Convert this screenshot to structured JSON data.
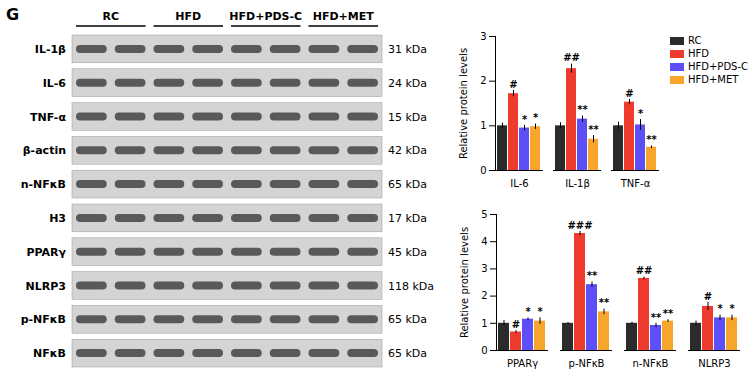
{
  "panel_label": "G",
  "blot": {
    "groups": [
      "RC",
      "HFD",
      "HFD+PDS-C",
      "HFD+MET"
    ],
    "rows": [
      {
        "label": "IL-1β",
        "size": "31 kDa"
      },
      {
        "label": "IL-6",
        "size": "24 kDa"
      },
      {
        "label": "TNF-α",
        "size": "15 kDa"
      },
      {
        "label": "β-actin",
        "size": "42 kDa"
      },
      {
        "label": "n-NFκB",
        "size": "65 kDa"
      },
      {
        "label": "H3",
        "size": "17 kDa"
      },
      {
        "label": "PPARγ",
        "size": "45 kDa"
      },
      {
        "label": "NLRP3",
        "size": "118 kDa"
      },
      {
        "label": "p-NFκB",
        "size": "65 kDa"
      },
      {
        "label": "NFκB",
        "size": "65 kDa"
      }
    ]
  },
  "chart_data": [
    {
      "type": "bar",
      "y_label": "Relative protein levels",
      "categories": [
        "IL-6",
        "IL-1β",
        "TNF-α"
      ],
      "series": [
        {
          "name": "RC",
          "color": "#2b2b2b",
          "values": [
            1.0,
            1.0,
            1.0
          ],
          "errors": [
            0.06,
            0.07,
            0.08
          ],
          "significance": [
            null,
            null,
            null
          ]
        },
        {
          "name": "HFD",
          "color": "#ee3b2e",
          "values": [
            1.72,
            2.28,
            1.53
          ],
          "errors": [
            0.07,
            0.1,
            0.06
          ],
          "significance": [
            "#",
            "##",
            "#"
          ]
        },
        {
          "name": "HFD+PDS-C",
          "color": "#5b4ff5",
          "values": [
            0.95,
            1.15,
            1.02
          ],
          "errors": [
            0.06,
            0.07,
            0.12
          ],
          "significance": [
            "*",
            "**",
            "*"
          ]
        },
        {
          "name": "HFD+MET",
          "color": "#f8a52b",
          "values": [
            0.98,
            0.7,
            0.52
          ],
          "errors": [
            0.06,
            0.08,
            0.03
          ],
          "significance": [
            "*",
            "**",
            "**"
          ]
        }
      ],
      "ylim": [
        0,
        3
      ],
      "yticks": [
        0,
        1,
        2,
        3
      ],
      "grid": false,
      "legend": "upper right"
    },
    {
      "type": "bar",
      "y_label": "Relative protein levels",
      "categories": [
        "PPARγ",
        "p-NFκB",
        "n-NFκB",
        "NLRP3"
      ],
      "series": [
        {
          "name": "RC",
          "color": "#2b2b2b",
          "values": [
            1.0,
            1.0,
            1.0,
            1.0
          ],
          "errors": [
            0.1,
            0.03,
            0.04,
            0.08
          ],
          "significance": [
            null,
            null,
            null,
            null
          ]
        },
        {
          "name": "HFD",
          "color": "#ee3b2e",
          "values": [
            0.68,
            4.3,
            2.65,
            1.62
          ],
          "errors": [
            0.05,
            0.08,
            0.05,
            0.15
          ],
          "significance": [
            "#",
            "###",
            "##",
            "#"
          ]
        },
        {
          "name": "HFD+PDS-C",
          "color": "#5b4ff5",
          "values": [
            1.15,
            2.42,
            0.92,
            1.2
          ],
          "errors": [
            0.05,
            0.1,
            0.08,
            0.1
          ],
          "significance": [
            "*",
            "**",
            "**",
            "*"
          ]
        },
        {
          "name": "HFD+MET",
          "color": "#f8a52b",
          "values": [
            1.08,
            1.42,
            1.08,
            1.2
          ],
          "errors": [
            0.12,
            0.1,
            0.05,
            0.1
          ],
          "significance": [
            "*",
            "**",
            "**",
            "*"
          ]
        }
      ],
      "ylim": [
        0,
        5
      ],
      "yticks": [
        0,
        1,
        2,
        3,
        4,
        5
      ],
      "grid": false
    }
  ]
}
